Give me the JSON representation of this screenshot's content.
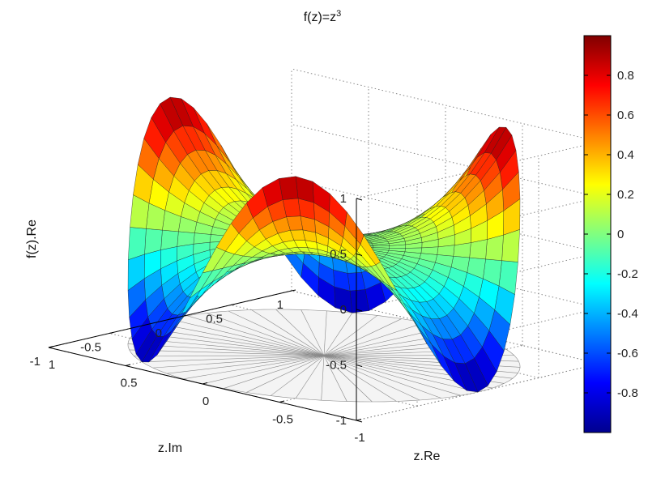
{
  "chart_data": {
    "type": "surface3d",
    "title": {
      "base": "f(z)=z",
      "sup": "3"
    },
    "function": "z^3",
    "plotted_component": "real",
    "domain": "unit disk |z| <= 1",
    "xlabel": "z.Re",
    "ylabel": "z.Im",
    "zlabel": "f(z).Re",
    "xlim": [
      -1,
      1
    ],
    "ylim": [
      -1,
      1
    ],
    "zlim": [
      -1,
      1
    ],
    "xticks": [
      "-1",
      "-0.5",
      "0",
      "0.5",
      "1"
    ],
    "yticks": [
      "-1",
      "-0.5",
      "0",
      "0.5",
      "1"
    ],
    "zticks": [
      "-1",
      "-0.5",
      "0",
      "0.5",
      "1"
    ],
    "grid": true,
    "floor_projection": "polar mesh of the unit disk at z = -1",
    "colormap": "jet",
    "colorbar": {
      "position": "right",
      "range": [
        -1,
        1
      ],
      "ticks": [
        "0.8",
        "0.6",
        "0.4",
        "0.2",
        "0",
        "-0.2",
        "-0.4",
        "-0.6",
        "-0.8"
      ]
    }
  }
}
